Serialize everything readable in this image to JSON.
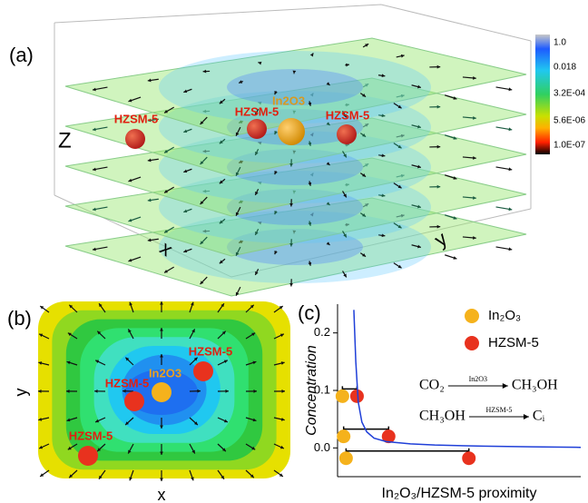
{
  "panel_a": {
    "label": "(a)",
    "axis_labels": {
      "z": "Z",
      "x": "x",
      "y": "y"
    },
    "catalyst_labels": [
      "In2O3",
      "HZSM-5",
      "HZSM-5",
      "HZSM-5"
    ],
    "colorbar_labels": [
      "1.0",
      "0.018",
      "3.2E-04",
      "5.6E-06",
      "1.0E-07"
    ]
  },
  "panel_b": {
    "label": "(b)",
    "axis_labels": {
      "x": "x",
      "y": "y"
    },
    "catalyst_labels": [
      "In2O3",
      "HZSM-5",
      "HZSM-5",
      "HZSM-5"
    ]
  },
  "panel_c_label": "(c)",
  "chart_data": {
    "type": "scatter",
    "ylabel": "Concentration",
    "xlabel": "In₂O₃/HZSM-5 proximity",
    "xlim": [
      0,
      10
    ],
    "ylim": [
      -0.05,
      0.25
    ],
    "yticks": [
      {
        "value": 0,
        "label": "0.0"
      },
      0.1,
      0.2
    ],
    "series": [
      {
        "name": "In₂O₃",
        "color": "#f5b21c",
        "x": [
          0.2,
          0.25,
          0.35
        ],
        "values": [
          0.09,
          0.02,
          -0.018
        ]
      },
      {
        "name": "HZSM-5",
        "color": "#e8321e",
        "x": [
          0.8,
          2.1,
          5.4
        ],
        "values": [
          0.09,
          0.02,
          -0.018
        ]
      },
      {
        "type": "line",
        "color": "#1f3fd8",
        "x": [
          0.67,
          0.75,
          0.85,
          1.0,
          1.2,
          1.5,
          2,
          3,
          4,
          6,
          8,
          10
        ],
        "values": [
          0.24,
          0.15,
          0.08,
          0.045,
          0.028,
          0.017,
          0.011,
          0.007,
          0.005,
          0.003,
          0.002,
          0.001
        ]
      }
    ],
    "equations": [
      {
        "reactant": "CO₂",
        "catalyst": "In2O3",
        "product": "CH₃OH"
      },
      {
        "reactant": "CH₃OH",
        "catalyst": "HZSM-5",
        "product": "Cᵢ"
      }
    ]
  }
}
